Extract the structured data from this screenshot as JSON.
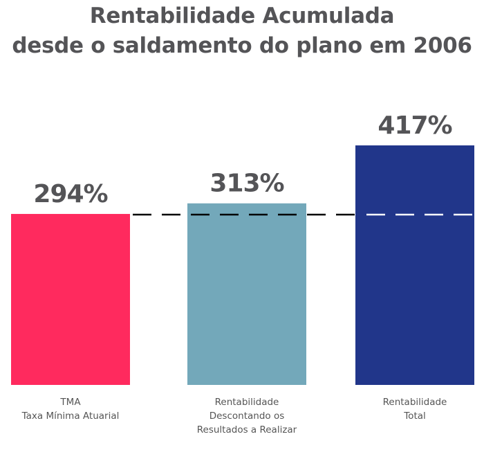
{
  "chart_data": {
    "type": "bar",
    "title_lines": [
      "Rentabilidade Acumulada",
      "desde o saldamento do plano em 2006"
    ],
    "categories": [
      [
        "TMA",
        "Taxa Mínima Atuarial"
      ],
      [
        "Rentabilidade",
        "Descontando os",
        "Resultados a Realizar"
      ],
      [
        "Rentabilidade",
        "Total"
      ]
    ],
    "values": [
      294,
      313,
      417
    ],
    "value_labels": [
      "294%",
      "313%",
      "417%"
    ],
    "colors": [
      "#ff2a5e",
      "#73a8ba",
      "#21368a"
    ],
    "reference_line": {
      "value": 294,
      "style": "dashed",
      "colors": [
        "#000000",
        "#000000",
        "#ffffff"
      ]
    },
    "xlabel": "",
    "ylabel": "",
    "unit": "%",
    "grid": false,
    "legend": "none"
  }
}
